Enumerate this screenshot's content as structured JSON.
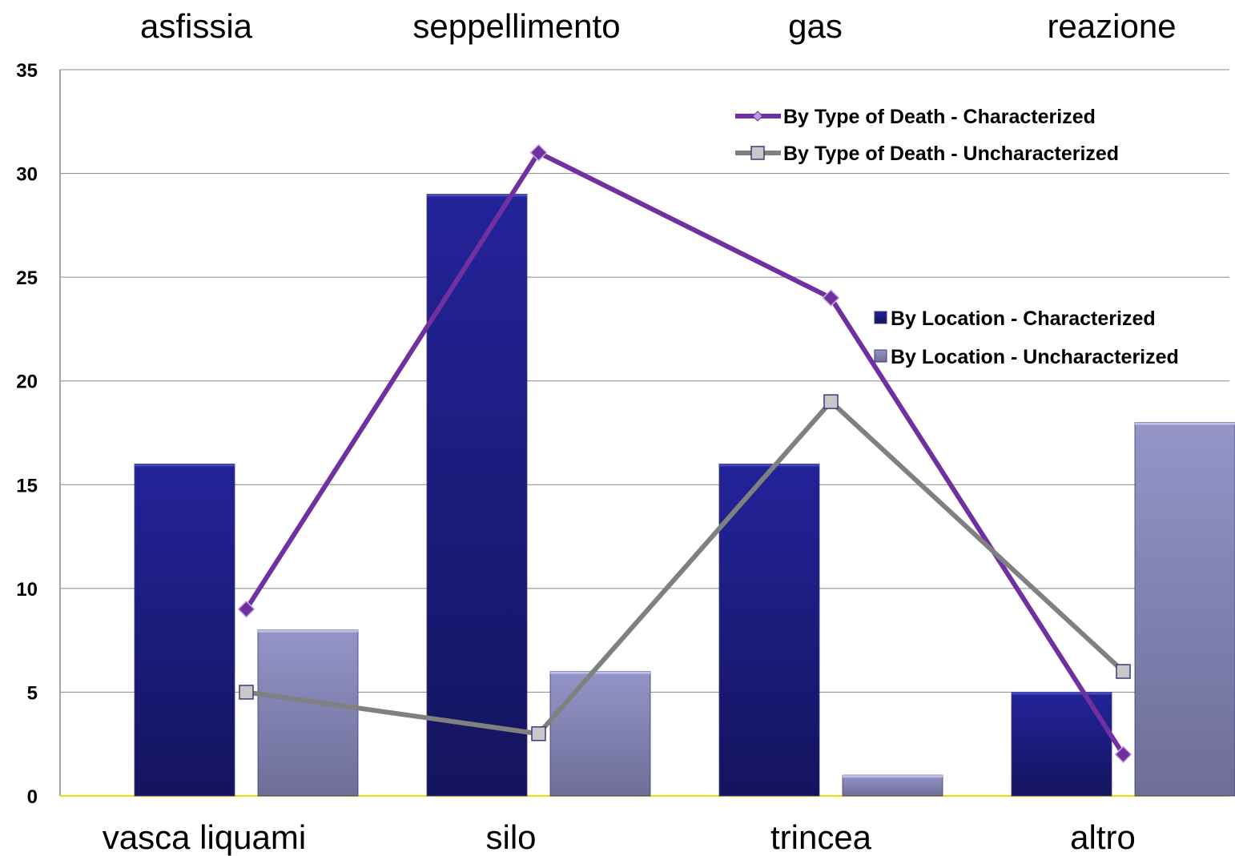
{
  "chart_data": {
    "type": "bar",
    "top_categories": [
      "asfissia",
      "seppellimento",
      "gas",
      "reazione"
    ],
    "categories": [
      "vasca liquami",
      "silo",
      "trincea",
      "altro"
    ],
    "ylim": [
      0,
      35
    ],
    "yticks": [
      "0",
      "5",
      "10",
      "15",
      "20",
      "25",
      "30",
      "35"
    ],
    "grid": true,
    "bar_series": [
      {
        "name": "By Location - Characterized",
        "values": [
          16,
          29,
          16,
          5
        ],
        "color": "#1f1f8a"
      },
      {
        "name": "By Location - Uncharacterized",
        "values": [
          8,
          6,
          1,
          18
        ],
        "color": "#8a8ac0"
      }
    ],
    "line_series": [
      {
        "name": "By Type of Death - Characterized",
        "values": [
          9,
          31,
          24,
          2
        ],
        "color": "#7030a0",
        "marker": "diamond"
      },
      {
        "name": "By Type of Death - Uncharacterized",
        "values": [
          5,
          3,
          19,
          6
        ],
        "color": "#808080",
        "marker": "square"
      }
    ],
    "line_legend_placement": "top-right",
    "bar_legend_placement": "right"
  }
}
